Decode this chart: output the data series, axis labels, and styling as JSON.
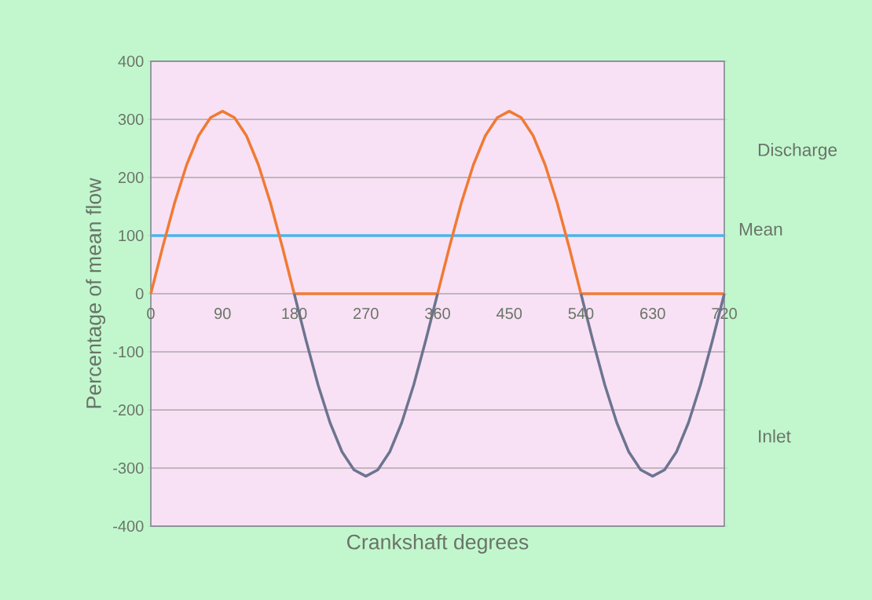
{
  "chart_data": {
    "type": "line",
    "xlabel": "Crankshaft degrees",
    "ylabel": "Percentage of mean flow",
    "xlim": [
      0,
      720
    ],
    "ylim": [
      -400,
      400
    ],
    "xticks": [
      0,
      90,
      180,
      270,
      360,
      450,
      540,
      630,
      720
    ],
    "yticks": [
      -400,
      -300,
      -200,
      -100,
      0,
      100,
      200,
      300,
      400
    ],
    "grid": "y",
    "line_style": "solid",
    "ref_lines": [
      {
        "axis": "y",
        "value": 100,
        "label": "Mean",
        "color": "#48b4ec"
      }
    ],
    "series": [
      {
        "name": "Discharge",
        "color": "#f07a34",
        "x": [
          0,
          15,
          30,
          45,
          60,
          75,
          90,
          105,
          120,
          135,
          150,
          165,
          180,
          360,
          375,
          390,
          405,
          420,
          435,
          450,
          465,
          480,
          495,
          510,
          525,
          540,
          720
        ],
        "values": [
          0,
          81,
          157,
          222,
          272,
          303,
          314,
          303,
          272,
          222,
          157,
          81,
          0,
          0,
          81,
          157,
          222,
          272,
          303,
          314,
          303,
          272,
          222,
          157,
          81,
          0,
          0
        ]
      },
      {
        "name": "Inlet",
        "color": "#6c7490",
        "x": [
          180,
          195,
          210,
          225,
          240,
          255,
          270,
          285,
          300,
          315,
          330,
          345,
          360,
          450,
          540,
          555,
          570,
          585,
          600,
          615,
          630,
          645,
          660,
          675,
          690,
          705,
          720
        ],
        "values": [
          0,
          -81,
          -157,
          -222,
          -272,
          -303,
          -314,
          -303,
          -272,
          -222,
          -157,
          -81,
          0,
          null,
          0,
          -81,
          -157,
          -222,
          -272,
          -303,
          -314,
          -303,
          -272,
          -222,
          -157,
          -81,
          0
        ]
      }
    ]
  }
}
